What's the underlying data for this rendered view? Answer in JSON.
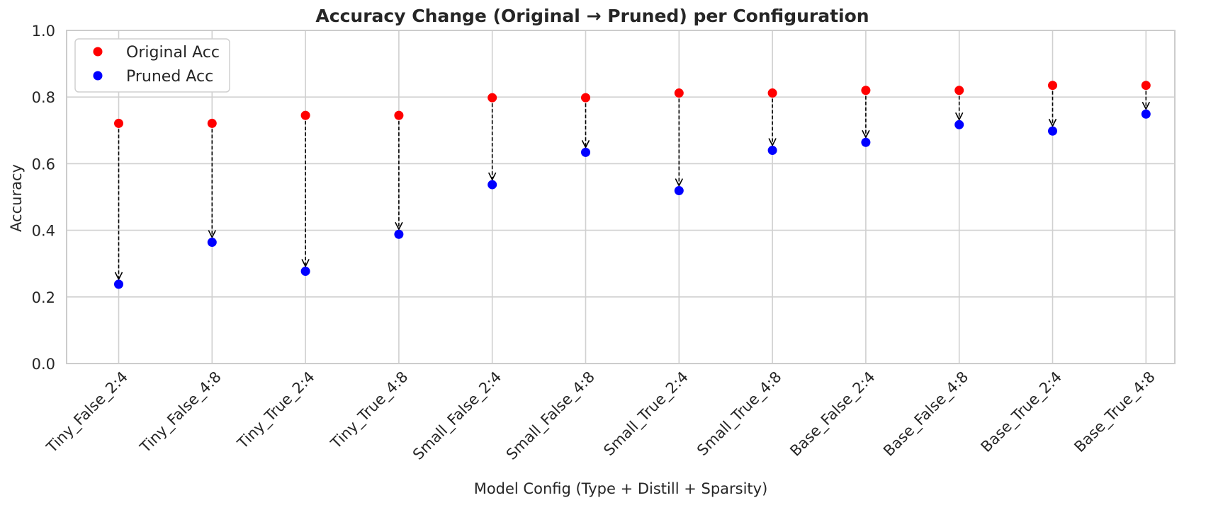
{
  "chart_data": {
    "type": "scatter",
    "title": "Accuracy Change (Original → Pruned) per Configuration",
    "xlabel": "Model Config (Type + Distill + Sparsity)",
    "ylabel": "Accuracy",
    "ylim": [
      0.0,
      1.0
    ],
    "yticks": [
      "0.0",
      "0.2",
      "0.4",
      "0.6",
      "0.8",
      "1.0"
    ],
    "grid": true,
    "legend_position": "top-left",
    "categories": [
      "Tiny_False_2:4",
      "Tiny_False_4:8",
      "Tiny_True_2:4",
      "Tiny_True_4:8",
      "Small_False_2:4",
      "Small_False_4:8",
      "Small_True_2:4",
      "Small_True_4:8",
      "Base_False_2:4",
      "Base_False_4:8",
      "Base_True_2:4",
      "Base_True_4:8"
    ],
    "series": [
      {
        "name": "Original Acc",
        "color": "#ff0000",
        "values": [
          0.721,
          0.721,
          0.745,
          0.745,
          0.798,
          0.798,
          0.812,
          0.812,
          0.82,
          0.82,
          0.835,
          0.835
        ]
      },
      {
        "name": "Pruned Acc",
        "color": "#0000ff",
        "values": [
          0.238,
          0.364,
          0.277,
          0.388,
          0.537,
          0.634,
          0.519,
          0.64,
          0.664,
          0.717,
          0.698,
          0.749
        ]
      }
    ],
    "annotations": "dashed arrows from Original Acc to Pruned Acc for each configuration"
  }
}
